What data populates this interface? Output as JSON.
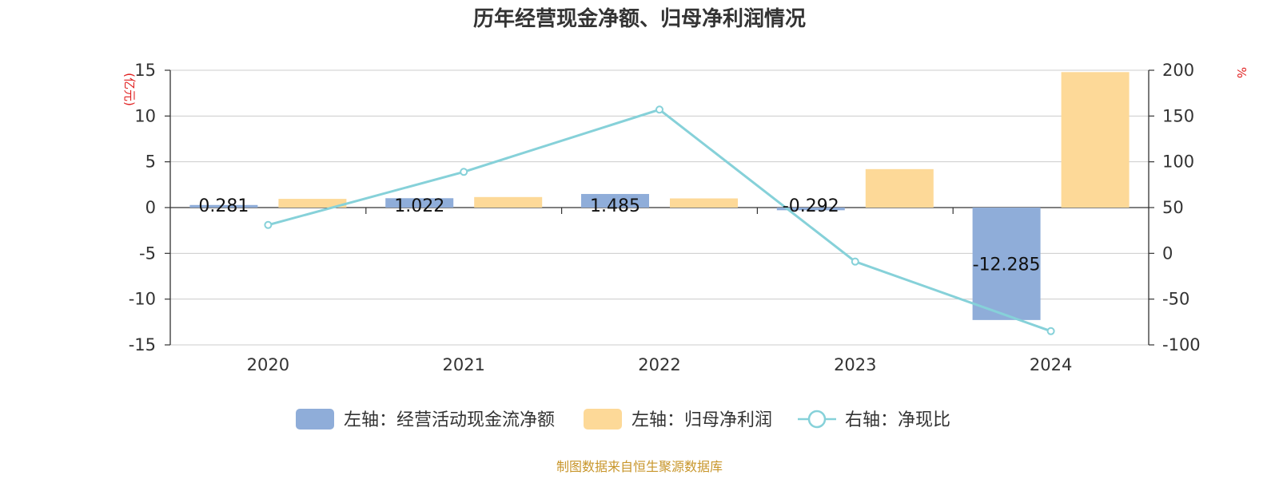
{
  "chart_data": {
    "type": "bar",
    "title": "历年经营现金净额、归母净利润情况",
    "categories": [
      "2020",
      "2021",
      "2022",
      "2023",
      "2024"
    ],
    "left_axis": {
      "unit": "(亿元)",
      "ylim": [
        -15,
        15
      ],
      "ticks": [
        "15",
        "10",
        "5",
        "0",
        "-5",
        "-10",
        "-15"
      ]
    },
    "right_axis": {
      "unit": "%",
      "ylim": [
        -100,
        200
      ],
      "ticks": [
        "200",
        "150",
        "100",
        "50",
        "0",
        "-50",
        "-100"
      ]
    },
    "series": [
      {
        "name": "左轴：经营活动现金流净额",
        "type": "bar",
        "axis": "left",
        "color": "#8fadd9",
        "values": [
          0.281,
          1.022,
          1.485,
          -0.292,
          -12.285
        ],
        "labels": [
          "0.281",
          "1.022",
          "1.485",
          "-0.292",
          "-12.285"
        ]
      },
      {
        "name": "左轴：归母净利润",
        "type": "bar",
        "axis": "left",
        "color": "#fdd998",
        "values": [
          0.95,
          1.15,
          1.0,
          4.2,
          14.8
        ]
      },
      {
        "name": "右轴：净现比",
        "type": "line",
        "axis": "right",
        "color": "#86d1d9",
        "values": [
          31,
          89,
          157,
          -9,
          -85
        ]
      }
    ],
    "grid": true,
    "legend": "bottom"
  },
  "source": "制图数据来自恒生聚源数据库"
}
